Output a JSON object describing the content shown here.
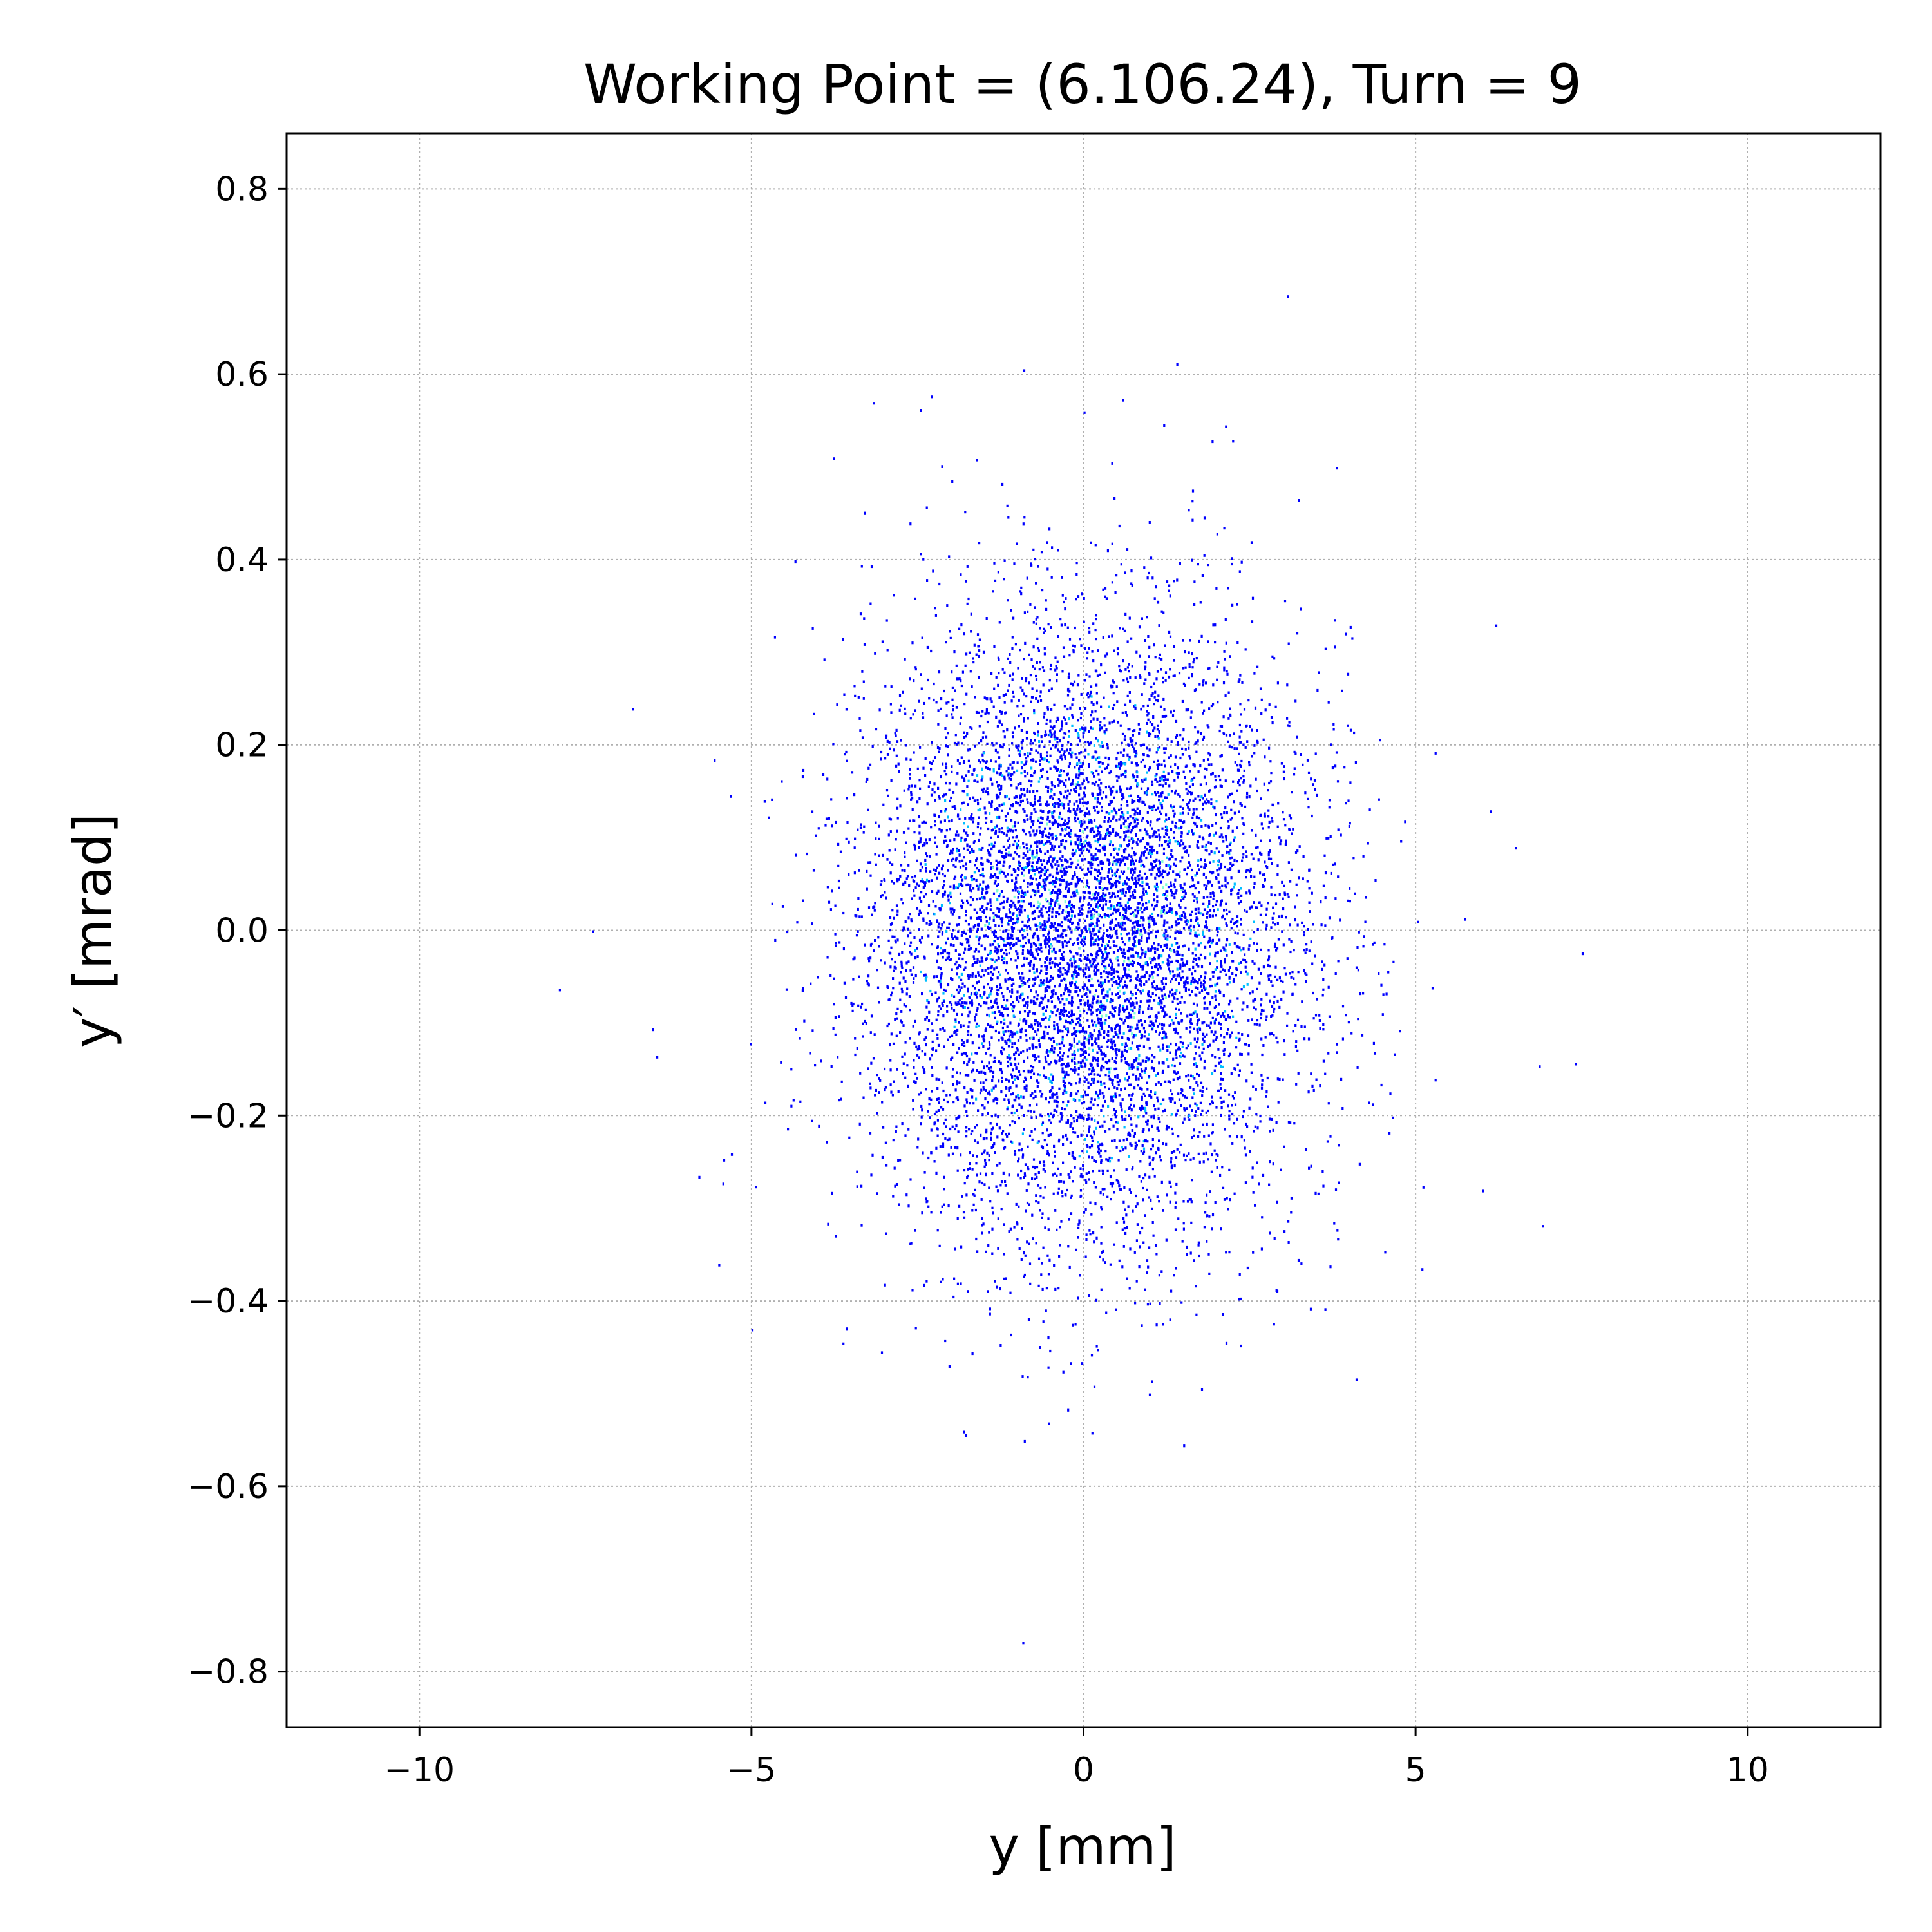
{
  "chart_data": {
    "type": "scatter",
    "title": "Working Point = (6.106.24), Turn = 9",
    "xlabel": "y [mm]",
    "ylabel": "y′ [mrad]",
    "xlim": [
      -12,
      12
    ],
    "ylim": [
      -0.86,
      0.86
    ],
    "xticks": [
      -10,
      -5,
      0,
      5,
      10
    ],
    "xtick_labels": [
      "−10",
      "−5",
      "0",
      "5",
      "10"
    ],
    "yticks": [
      -0.8,
      -0.6,
      -0.4,
      -0.2,
      0.0,
      0.2,
      0.4,
      0.6,
      0.8
    ],
    "ytick_labels": [
      "−0.8",
      "−0.6",
      "−0.4",
      "−0.2",
      "0.0",
      "0.2",
      "0.4",
      "0.6",
      "0.8"
    ],
    "grid": true,
    "distribution": {
      "kind": "gaussian-2d",
      "mean": [
        0.0,
        0.0
      ],
      "std": [
        1.6,
        0.16
      ],
      "count": 9000
    },
    "colors": {
      "points_low": "#0000ff",
      "points_mid": "#00bfff",
      "points_high": "#7fffd4",
      "axes": "#000000",
      "grid": "#b0b0b0"
    },
    "outliers": [
      {
        "x": -7.9,
        "y": -0.063
      },
      {
        "x": -7.4,
        "y": 0.0
      },
      {
        "x": -6.8,
        "y": 0.24
      },
      {
        "x": -6.5,
        "y": -0.106
      },
      {
        "x": -5.8,
        "y": -0.265
      },
      {
        "x": -5.5,
        "y": -0.36
      },
      {
        "x": -5.0,
        "y": -0.43
      },
      {
        "x": -2.3,
        "y": 0.577
      },
      {
        "x": 0.0,
        "y": 0.56
      },
      {
        "x": 1.2,
        "y": 0.546
      },
      {
        "x": 3.8,
        "y": 0.5
      },
      {
        "x": 6.0,
        "y": -0.28
      },
      {
        "x": 6.2,
        "y": 0.33
      },
      {
        "x": 6.5,
        "y": 0.09
      },
      {
        "x": 6.9,
        "y": -0.318
      },
      {
        "x": 7.4,
        "y": -0.143
      },
      {
        "x": 7.5,
        "y": -0.024
      },
      {
        "x": 1.5,
        "y": -0.555
      },
      {
        "x": -0.9,
        "y": -0.55
      }
    ]
  }
}
